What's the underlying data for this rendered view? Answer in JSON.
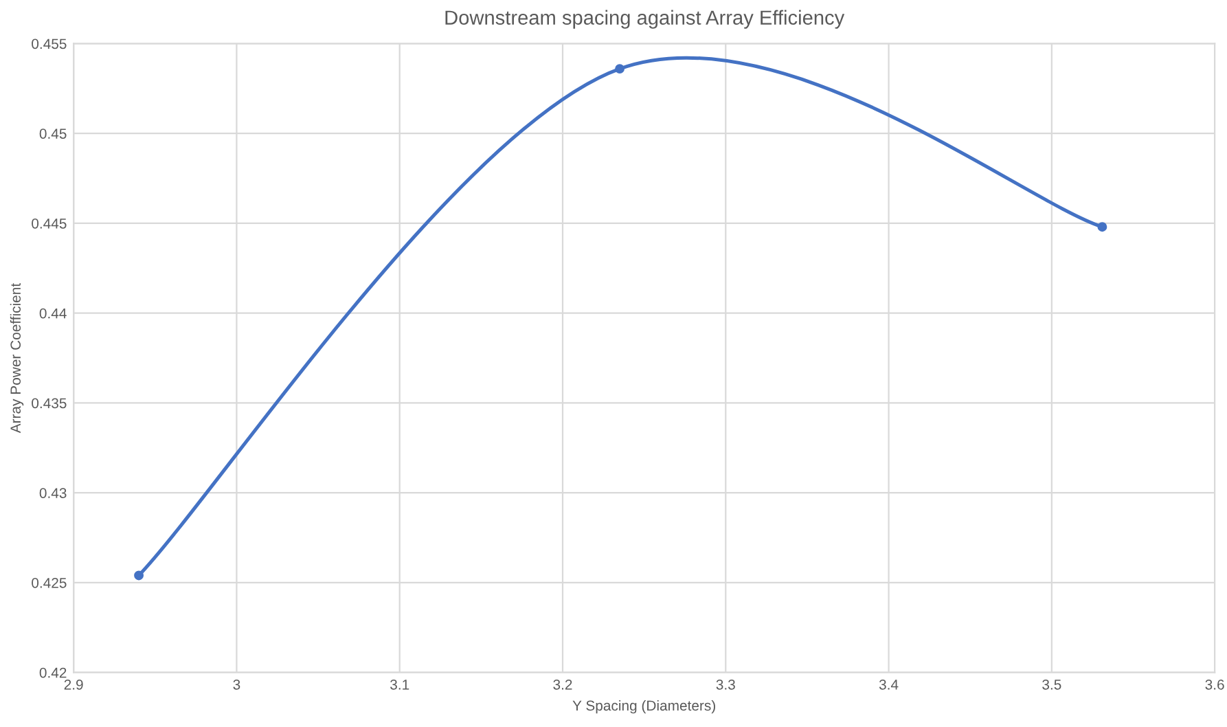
{
  "chart_data": {
    "type": "line",
    "title": "Downstream spacing against Array Efficiency",
    "xlabel": "Y Spacing (Diameters)",
    "ylabel": "Array Power Coefficient",
    "x": [
      2.94,
      3.235,
      3.531
    ],
    "series": [
      {
        "color": "#4472c4",
        "values": [
          0.4254,
          0.4536,
          0.4448
        ]
      }
    ],
    "xlim": [
      2.9,
      3.6
    ],
    "xticks": [
      2.9,
      3,
      3.1,
      3.2,
      3.3,
      3.4,
      3.5,
      3.6
    ],
    "ylim": [
      0.42,
      0.455
    ],
    "yticks": [
      0.42,
      0.425,
      0.43,
      0.435,
      0.44,
      0.445,
      0.45,
      0.455
    ],
    "grid": true,
    "marker": "circle",
    "line_style": "solid"
  }
}
